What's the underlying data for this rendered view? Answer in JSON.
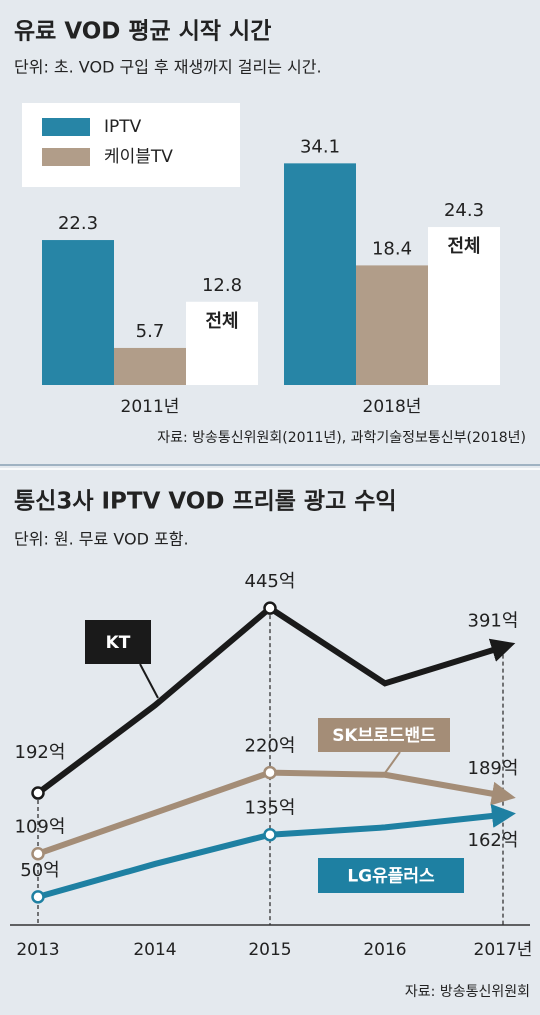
{
  "chart_data": [
    {
      "type": "bar",
      "title": "유료 VOD 평균 시작 시간",
      "subtitle": "단위: 초. VOD 구입 후 재생까지 걸리는 시간.",
      "categories": [
        "2011년",
        "2018년"
      ],
      "series": [
        {
          "name": "IPTV",
          "color": "#2785a6",
          "values": [
            22.3,
            34.1
          ]
        },
        {
          "name": "케이블TV",
          "color": "#b19d89",
          "values": [
            5.7,
            18.4
          ]
        },
        {
          "name": "전체",
          "color": "#ffffff",
          "values": [
            12.8,
            24.3
          ]
        }
      ],
      "source": "자료: 방송통신위원회(2011년), 과학기술정보통신부(2018년)"
    },
    {
      "type": "line",
      "title": "통신3사 IPTV VOD 프리롤 광고 수익",
      "subtitle": "단위: 원. 무료 VOD 포함.",
      "categories": [
        "2013",
        "2014",
        "2015",
        "2016",
        "2017년"
      ],
      "series": [
        {
          "name": "KT",
          "color": "#1a1a1a",
          "values": [
            192,
            312,
            445,
            342,
            391
          ],
          "value_labels": [
            "192억",
            null,
            "445억",
            null,
            "391억"
          ]
        },
        {
          "name": "SK브로드밴드",
          "color": "#a48d77",
          "values": [
            109,
            165,
            220,
            217,
            189
          ],
          "value_labels": [
            "109억",
            null,
            "220억",
            null,
            "189억"
          ]
        },
        {
          "name": "LG유플러스",
          "color": "#1e80a2",
          "values": [
            50,
            95,
            135,
            145,
            162
          ],
          "value_labels": [
            "50억",
            null,
            "135억",
            null,
            "162억"
          ]
        }
      ],
      "source": "자료: 방송통신위원회"
    }
  ]
}
